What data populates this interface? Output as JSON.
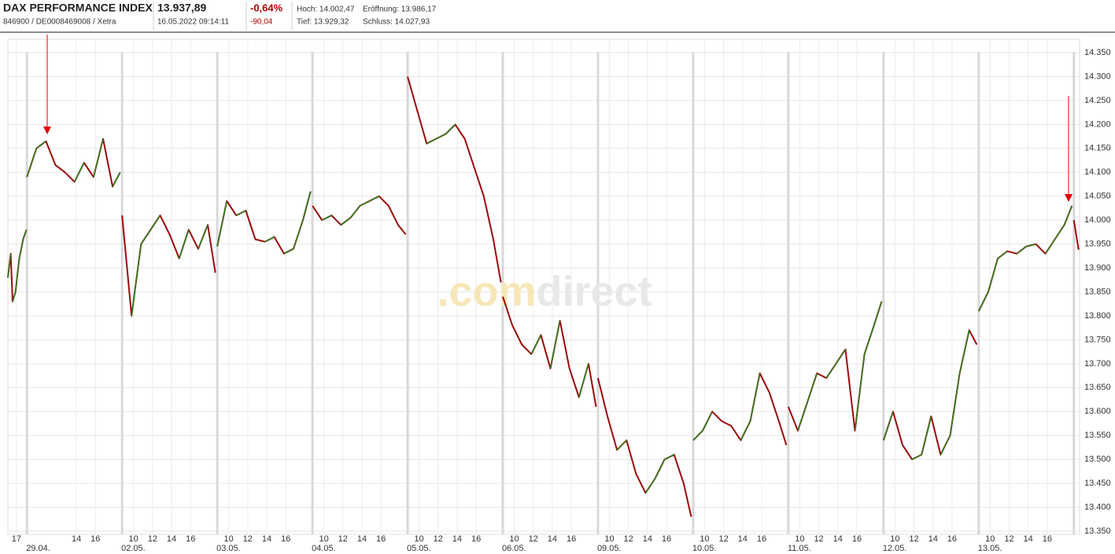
{
  "header": {
    "title": "DAX PERFORMANCE INDEX",
    "ids": "846900 / DE0008469008 / Xetra",
    "price": "13.937,89",
    "timestamp": "16.05.2022 09:14:11",
    "change_pct": "-0,64%",
    "change_abs": "-90,04",
    "high": "Hoch: 14.002,47",
    "open": "Eröffnung: 13.986,17",
    "low": "Tief: 13.929,32",
    "close": "Schluss: 14.027,93"
  },
  "chart_data": {
    "type": "line",
    "watermark": [
      ".com",
      "direct"
    ],
    "x": [
      -2,
      -1.7,
      -1.5,
      -1.2,
      -0.8,
      -0.4,
      -0.05,
      null,
      0,
      1,
      2,
      3,
      4,
      5,
      6,
      7,
      8,
      9,
      9.8,
      null,
      10,
      11,
      12,
      13,
      14,
      15,
      16,
      17,
      18,
      19,
      19.8,
      null,
      20,
      21,
      22,
      23,
      24,
      25,
      26,
      27,
      28,
      29,
      29.8,
      null,
      30,
      31,
      32,
      33,
      34,
      35,
      36,
      37,
      38,
      39,
      39.8,
      null,
      40,
      41,
      42,
      43,
      44,
      45,
      46,
      47,
      48,
      49,
      49.8,
      null,
      50,
      51,
      52,
      53,
      54,
      55,
      56,
      57,
      58,
      59,
      59.8,
      null,
      60,
      61,
      62,
      63,
      64,
      65,
      66,
      67,
      68,
      69,
      69.8,
      null,
      70,
      71,
      72,
      73,
      74,
      75,
      76,
      77,
      78,
      79,
      79.8,
      null,
      80,
      81,
      82,
      83,
      84,
      85,
      86,
      87,
      88,
      89,
      89.8,
      null,
      90,
      91,
      92,
      93,
      94,
      95,
      96,
      97,
      98,
      99,
      99.8,
      null,
      100,
      101,
      102,
      103,
      104,
      105,
      106,
      107,
      108,
      109,
      109.8,
      null,
      110,
      110.5
    ],
    "series": [
      {
        "color": "#9b0a0a",
        "up_color": "#1e8c1e",
        "values": [
          13880,
          13930,
          13830,
          13850,
          13920,
          13960,
          13980,
          null,
          14090,
          14150,
          14165,
          14115,
          14100,
          14080,
          14120,
          14090,
          14170,
          14070,
          14100,
          null,
          14010,
          13800,
          13950,
          13980,
          14010,
          13970,
          13920,
          13980,
          13940,
          13990,
          13890,
          null,
          13945,
          14040,
          14010,
          14020,
          13960,
          13955,
          13965,
          13930,
          13940,
          14000,
          14060,
          null,
          14030,
          14000,
          14010,
          13990,
          14005,
          14030,
          14040,
          14050,
          14030,
          13990,
          13970,
          null,
          14300,
          14230,
          14160,
          14170,
          14180,
          14200,
          14170,
          14110,
          14050,
          13960,
          13870,
          null,
          13840,
          13780,
          13740,
          13720,
          13760,
          13690,
          13790,
          13690,
          13630,
          13700,
          13610,
          null,
          13670,
          13590,
          13520,
          13540,
          13470,
          13430,
          13460,
          13500,
          13510,
          13450,
          13380,
          null,
          13540,
          13560,
          13600,
          13580,
          13570,
          13540,
          13580,
          13680,
          13640,
          13580,
          13530,
          null,
          13610,
          13560,
          13620,
          13680,
          13670,
          13700,
          13730,
          13560,
          13720,
          13780,
          13830,
          null,
          13540,
          13600,
          13530,
          13500,
          13510,
          13590,
          13510,
          13550,
          13680,
          13770,
          13740,
          null,
          13810,
          13850,
          13920,
          13935,
          13930,
          13945,
          13950,
          13930,
          13960,
          13990,
          14030,
          null,
          14000,
          13938
        ]
      }
    ],
    "xlim": [
      -2,
      110.6
    ],
    "ylim": [
      13350,
      14350
    ],
    "yticks": [
      {
        "value": 13350,
        "label": "13.350"
      },
      {
        "value": 13400,
        "label": "13.400"
      },
      {
        "value": 13450,
        "label": "13.450"
      },
      {
        "value": 13500,
        "label": "13.500"
      },
      {
        "value": 13550,
        "label": "13.550"
      },
      {
        "value": 13600,
        "label": "13.600"
      },
      {
        "value": 13650,
        "label": "13.650"
      },
      {
        "value": 13700,
        "label": "13.700"
      },
      {
        "value": 13750,
        "label": "13.750"
      },
      {
        "value": 13800,
        "label": "13.800"
      },
      {
        "value": 13850,
        "label": "13.850"
      },
      {
        "value": 13900,
        "label": "13.900"
      },
      {
        "value": 13950,
        "label": "13.950"
      },
      {
        "value": 14000,
        "label": "14.000"
      },
      {
        "value": 14050,
        "label": "14.050"
      },
      {
        "value": 14100,
        "label": "14.100"
      },
      {
        "value": 14150,
        "label": "14.150"
      },
      {
        "value": 14200,
        "label": "14.200"
      },
      {
        "value": 14250,
        "label": "14.250"
      },
      {
        "value": 14300,
        "label": "14.300"
      },
      {
        "value": 14350,
        "label": "14.350"
      }
    ],
    "xticks": [
      {
        "value": -1.1,
        "label": "17"
      },
      {
        "value": 5.2,
        "label": "14"
      },
      {
        "value": 7.2,
        "label": "16"
      },
      {
        "value": 11.2,
        "label": "10"
      },
      {
        "value": 13.2,
        "label": "12"
      },
      {
        "value": 15.2,
        "label": "14"
      },
      {
        "value": 17.2,
        "label": "16"
      },
      {
        "value": 21.2,
        "label": "10"
      },
      {
        "value": 23.2,
        "label": "12"
      },
      {
        "value": 25.2,
        "label": "14"
      },
      {
        "value": 27.2,
        "label": "16"
      },
      {
        "value": 31.2,
        "label": "10"
      },
      {
        "value": 33.2,
        "label": "12"
      },
      {
        "value": 35.2,
        "label": "14"
      },
      {
        "value": 37.2,
        "label": "16"
      },
      {
        "value": 41.2,
        "label": "10"
      },
      {
        "value": 43.2,
        "label": "12"
      },
      {
        "value": 45.2,
        "label": "14"
      },
      {
        "value": 47.2,
        "label": "16"
      },
      {
        "value": 51.2,
        "label": "10"
      },
      {
        "value": 53.2,
        "label": "12"
      },
      {
        "value": 55.2,
        "label": "14"
      },
      {
        "value": 57.2,
        "label": "16"
      },
      {
        "value": 61.2,
        "label": "10"
      },
      {
        "value": 63.2,
        "label": "12"
      },
      {
        "value": 65.2,
        "label": "14"
      },
      {
        "value": 67.2,
        "label": "16"
      },
      {
        "value": 71.2,
        "label": "10"
      },
      {
        "value": 73.2,
        "label": "12"
      },
      {
        "value": 75.2,
        "label": "14"
      },
      {
        "value": 77.2,
        "label": "16"
      },
      {
        "value": 81.2,
        "label": "10"
      },
      {
        "value": 83.2,
        "label": "12"
      },
      {
        "value": 85.2,
        "label": "14"
      },
      {
        "value": 87.2,
        "label": "16"
      },
      {
        "value": 91.2,
        "label": "10"
      },
      {
        "value": 93.2,
        "label": "12"
      },
      {
        "value": 95.2,
        "label": "14"
      },
      {
        "value": 97.2,
        "label": "16"
      },
      {
        "value": 101.2,
        "label": "10"
      },
      {
        "value": 103.2,
        "label": "12"
      },
      {
        "value": 105.2,
        "label": "14"
      },
      {
        "value": 107.2,
        "label": "16"
      }
    ],
    "day_labels": [
      {
        "value": 0,
        "label": "29.04."
      },
      {
        "value": 10,
        "label": "02.05."
      },
      {
        "value": 20,
        "label": "03.05."
      },
      {
        "value": 30,
        "label": "04.05."
      },
      {
        "value": 40,
        "label": "05.05."
      },
      {
        "value": 50,
        "label": "06.05."
      },
      {
        "value": 60,
        "label": "09.05."
      },
      {
        "value": 70,
        "label": "10.05."
      },
      {
        "value": 80,
        "label": "11.05."
      },
      {
        "value": 90,
        "label": "12.05."
      },
      {
        "value": 100,
        "label": "13.05."
      }
    ],
    "separators": [
      0,
      10,
      20,
      30,
      40,
      50,
      60,
      70,
      80,
      90,
      100,
      110
    ],
    "grid": true
  }
}
